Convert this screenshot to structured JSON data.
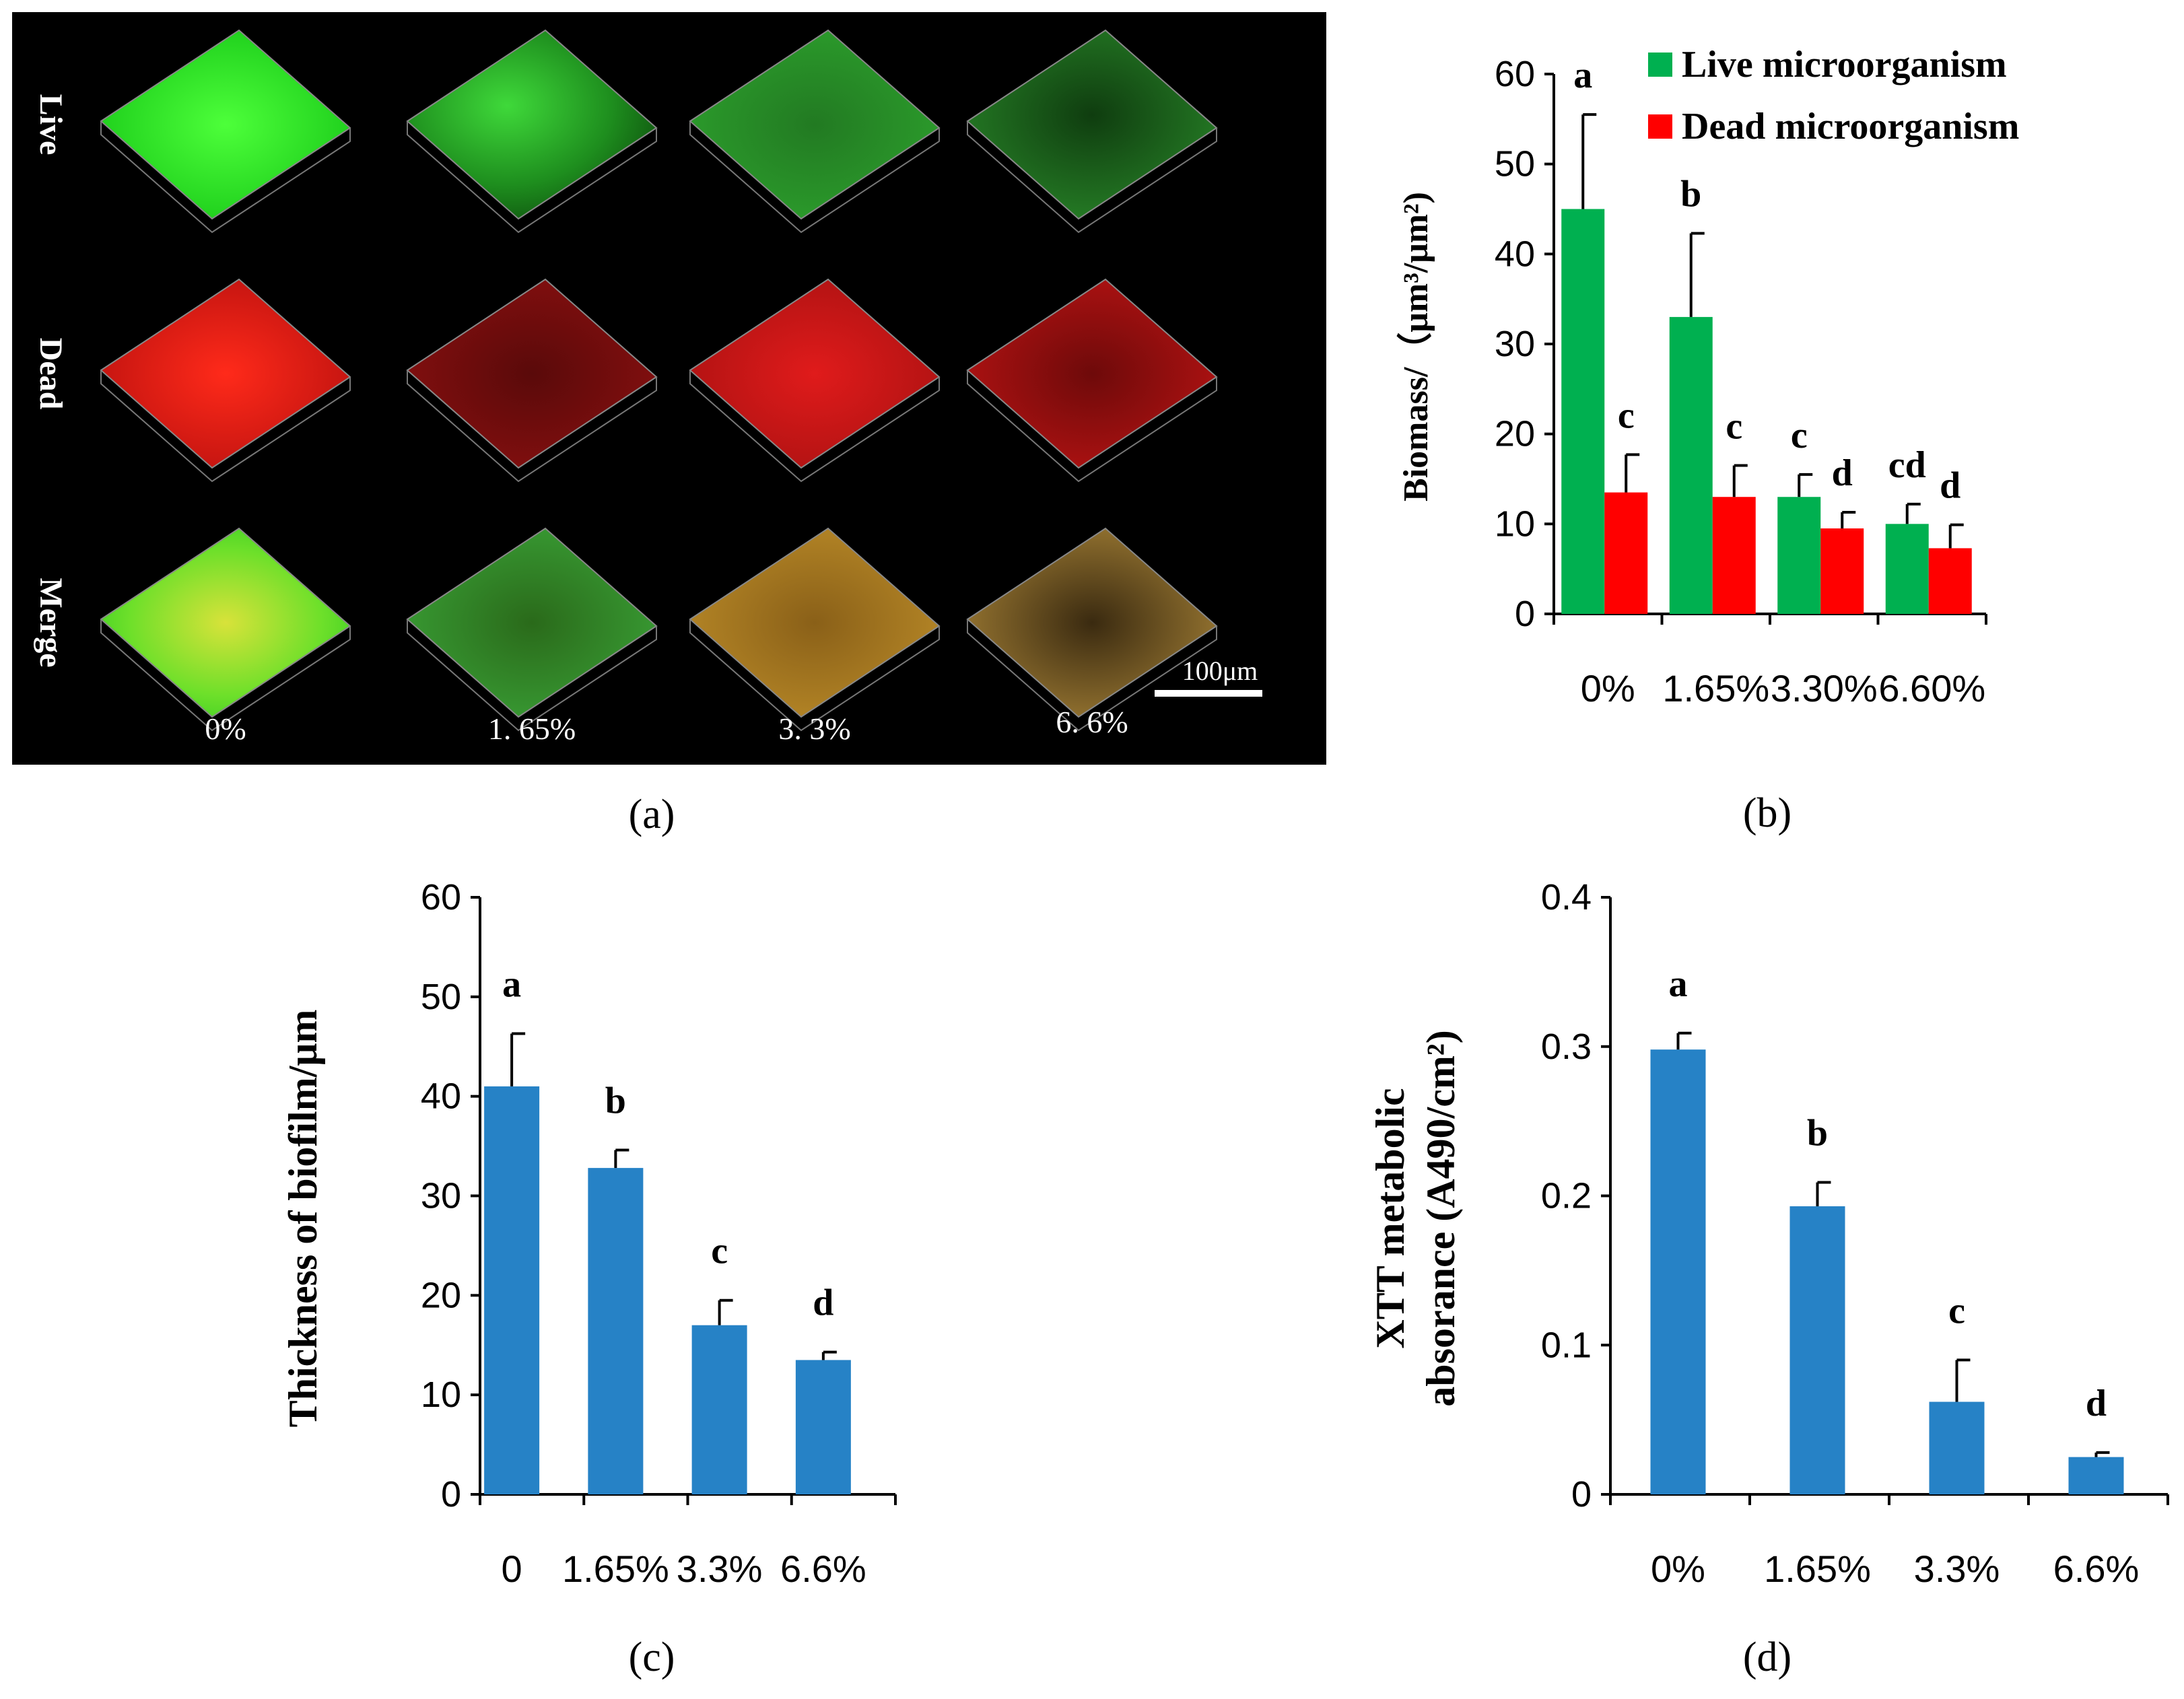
{
  "panel_a": {
    "label": "(a)",
    "row_labels": [
      "Live",
      "Dead",
      "Merge"
    ],
    "col_labels": [
      "0%",
      "1. 65%",
      "3. 3%",
      "6. 6%"
    ],
    "scale_bar": "100μm",
    "image_description": "Confocal 3D biofilm renderings: live (green), dead (red), merge"
  },
  "chart_data": [
    {
      "id": "b",
      "type": "bar",
      "panel_label": "(b)",
      "title": "",
      "ylabel": "Biomass/（μm³/μm²)",
      "xlabel": "",
      "categories": [
        "0%",
        "1.65%",
        "3.30%",
        "6.60%"
      ],
      "ylim": [
        0,
        60
      ],
      "yticks": [
        0,
        10,
        20,
        30,
        40,
        50,
        60
      ],
      "legend_position": "top-right",
      "series": [
        {
          "name": "Live microorganism",
          "color": "#00b050",
          "values": [
            45.0,
            33.0,
            13.0,
            10.0
          ],
          "errors": [
            10.5,
            9.3,
            2.5,
            2.2
          ],
          "letters": [
            "a",
            "b",
            "c",
            "cd"
          ]
        },
        {
          "name": "Dead microorganism",
          "color": "#ff0000",
          "values": [
            13.5,
            13.0,
            9.5,
            7.3
          ],
          "errors": [
            4.2,
            3.5,
            1.8,
            2.6
          ],
          "letters": [
            "c",
            "c",
            "d",
            "d"
          ]
        }
      ]
    },
    {
      "id": "c",
      "type": "bar",
      "panel_label": "(c)",
      "title": "",
      "ylabel": "Thickness of biofilm/μm",
      "xlabel": "",
      "categories": [
        "0",
        "1.65%",
        "3.3%",
        "6.6%"
      ],
      "ylim": [
        0,
        60
      ],
      "yticks": [
        0,
        10,
        20,
        30,
        40,
        50,
        60
      ],
      "series": [
        {
          "name": "Thickness",
          "color": "#2682c6",
          "values": [
            41.0,
            32.8,
            17.0,
            13.5
          ],
          "errors": [
            5.3,
            1.8,
            2.5,
            0.8
          ],
          "letters": [
            "a",
            "b",
            "c",
            "d"
          ]
        }
      ]
    },
    {
      "id": "d",
      "type": "bar",
      "panel_label": "(d)",
      "title": "",
      "ylabel": "XTT metabolic absorance (A490/cm²)",
      "ylabel_lines": [
        "XTT metabolic",
        "absorance (A490/cm²)"
      ],
      "xlabel": "",
      "categories": [
        "0%",
        "1.65%",
        "3.3%",
        "6.6%"
      ],
      "ylim": [
        0,
        0.4
      ],
      "yticks": [
        0,
        0.1,
        0.2,
        0.3,
        0.4
      ],
      "series": [
        {
          "name": "XTT",
          "color": "#2682c6",
          "values": [
            0.298,
            0.193,
            0.062,
            0.025
          ],
          "errors": [
            0.011,
            0.016,
            0.028,
            0.003
          ],
          "letters": [
            "a",
            "b",
            "c",
            "d"
          ]
        }
      ]
    }
  ]
}
